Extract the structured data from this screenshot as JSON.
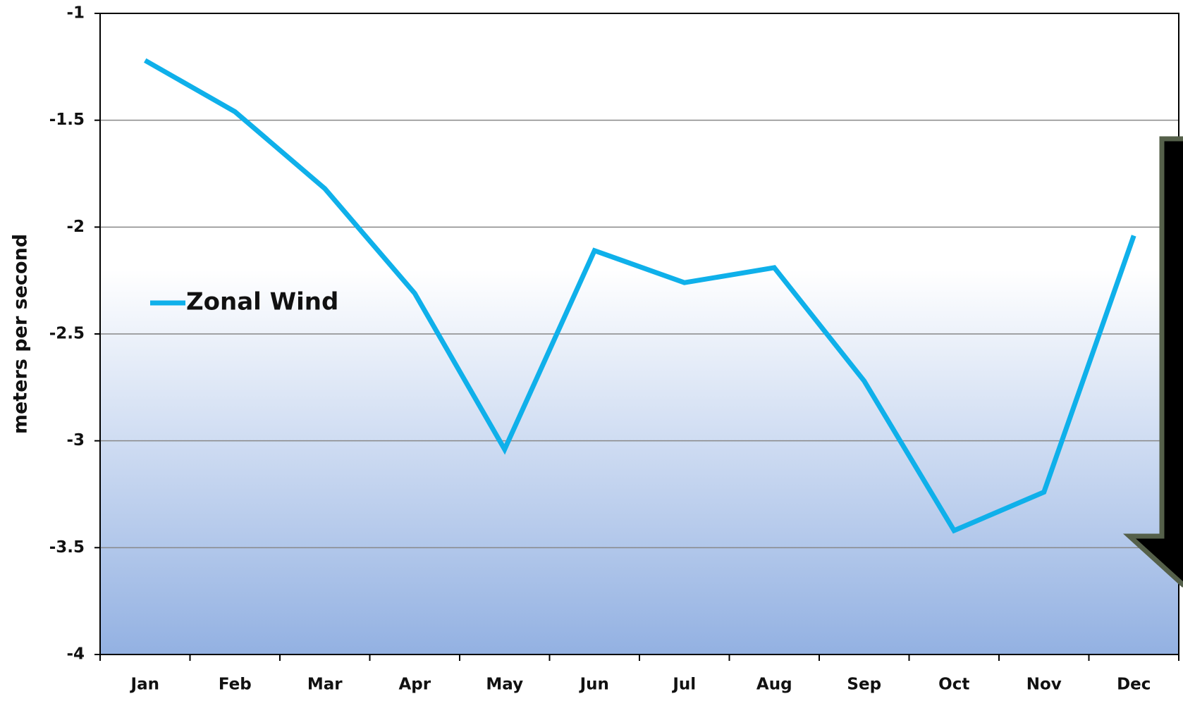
{
  "chart_data": {
    "type": "line",
    "y_label": "meters per second",
    "categories": [
      "Jan",
      "Feb",
      "Mar",
      "Apr",
      "May",
      "Jun",
      "Jul",
      "Aug",
      "Sep",
      "Oct",
      "Nov",
      "Dec"
    ],
    "series": [
      {
        "name": "Zonal Wind",
        "color": "#0fb0ea",
        "values": [
          -1.22,
          -1.46,
          -1.82,
          -2.31,
          -3.04,
          -2.11,
          -2.26,
          -2.19,
          -2.72,
          -3.42,
          -3.24,
          -2.04
        ]
      }
    ],
    "ylim": [
      -4,
      -1
    ],
    "yticks": [
      -4,
      -3.5,
      -3,
      -2.5,
      -2,
      -1.5,
      -1
    ],
    "grid": true
  }
}
